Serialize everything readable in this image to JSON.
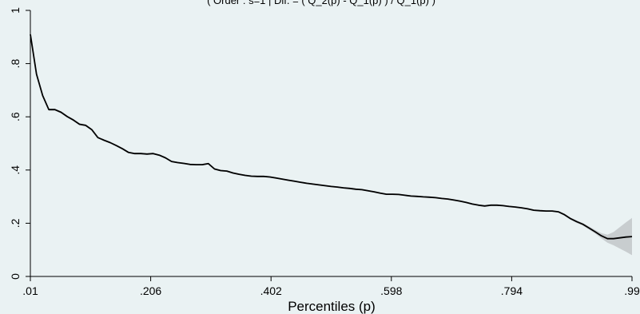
{
  "chart_data": {
    "type": "line",
    "title": "( Order : s=1 | Dif. = ( Q_2(p) - Q_1(p) ) / Q_1(p) )",
    "xlabel": "Percentiles (p)",
    "ylabel": "",
    "xlim": [
      0.01,
      0.99
    ],
    "ylim": [
      0,
      1
    ],
    "x_ticks": [
      0.01,
      0.206,
      0.402,
      0.598,
      0.794,
      0.99
    ],
    "x_tick_labels": [
      ".01",
      ".206",
      ".402",
      ".598",
      ".794",
      ".99"
    ],
    "y_ticks": [
      0,
      0.2,
      0.4,
      0.6,
      0.8,
      1
    ],
    "y_tick_labels": [
      "0",
      ".2",
      ".4",
      ".6",
      ".8",
      "1"
    ],
    "grid": false,
    "legend": "none",
    "line_color": "#000000",
    "band_color": "#c8cdcf",
    "series": [
      {
        "x": [
          0.01,
          0.02,
          0.03,
          0.04,
          0.05,
          0.06,
          0.07,
          0.08,
          0.09,
          0.1,
          0.11,
          0.12,
          0.13,
          0.14,
          0.15,
          0.16,
          0.17,
          0.18,
          0.19,
          0.2,
          0.21,
          0.22,
          0.23,
          0.24,
          0.25,
          0.26,
          0.27,
          0.28,
          0.29,
          0.3,
          0.31,
          0.32,
          0.33,
          0.34,
          0.35,
          0.36,
          0.37,
          0.38,
          0.39,
          0.4,
          0.41,
          0.42,
          0.43,
          0.44,
          0.45,
          0.46,
          0.47,
          0.48,
          0.49,
          0.5,
          0.51,
          0.52,
          0.53,
          0.54,
          0.55,
          0.56,
          0.57,
          0.58,
          0.59,
          0.6,
          0.61,
          0.62,
          0.63,
          0.64,
          0.65,
          0.66,
          0.67,
          0.68,
          0.69,
          0.7,
          0.71,
          0.72,
          0.73,
          0.74,
          0.75,
          0.76,
          0.77,
          0.78,
          0.79,
          0.8,
          0.81,
          0.82,
          0.83,
          0.84,
          0.85,
          0.86,
          0.87,
          0.88,
          0.89,
          0.9,
          0.91,
          0.92,
          0.93,
          0.94,
          0.95,
          0.96,
          0.97,
          0.98,
          0.99
        ],
        "y": [
          0.91,
          0.76,
          0.68,
          0.627,
          0.627,
          0.617,
          0.601,
          0.588,
          0.572,
          0.568,
          0.552,
          0.522,
          0.512,
          0.503,
          0.492,
          0.48,
          0.466,
          0.462,
          0.462,
          0.46,
          0.462,
          0.456,
          0.446,
          0.432,
          0.428,
          0.425,
          0.421,
          0.42,
          0.42,
          0.424,
          0.404,
          0.398,
          0.396,
          0.389,
          0.384,
          0.38,
          0.377,
          0.376,
          0.376,
          0.374,
          0.37,
          0.366,
          0.362,
          0.358,
          0.354,
          0.35,
          0.347,
          0.344,
          0.341,
          0.338,
          0.336,
          0.333,
          0.331,
          0.328,
          0.326,
          0.322,
          0.318,
          0.313,
          0.309,
          0.309,
          0.308,
          0.305,
          0.302,
          0.301,
          0.299,
          0.298,
          0.296,
          0.293,
          0.291,
          0.287,
          0.283,
          0.278,
          0.272,
          0.268,
          0.265,
          0.268,
          0.268,
          0.266,
          0.263,
          0.261,
          0.258,
          0.254,
          0.249,
          0.247,
          0.246,
          0.246,
          0.243,
          0.232,
          0.217,
          0.206,
          0.196,
          0.182,
          0.168,
          0.153,
          0.142,
          0.142,
          0.145,
          0.148,
          0.15
        ],
        "ci_halfwidth": [
          0.004,
          0.004,
          0.004,
          0.004,
          0.004,
          0.004,
          0.004,
          0.004,
          0.004,
          0.004,
          0.003,
          0.003,
          0.003,
          0.003,
          0.003,
          0.003,
          0.003,
          0.003,
          0.003,
          0.003,
          0.003,
          0.003,
          0.003,
          0.003,
          0.003,
          0.003,
          0.003,
          0.003,
          0.003,
          0.003,
          0.003,
          0.003,
          0.003,
          0.003,
          0.003,
          0.003,
          0.003,
          0.003,
          0.003,
          0.003,
          0.003,
          0.003,
          0.003,
          0.003,
          0.003,
          0.003,
          0.003,
          0.003,
          0.003,
          0.003,
          0.003,
          0.003,
          0.003,
          0.003,
          0.003,
          0.003,
          0.003,
          0.003,
          0.003,
          0.003,
          0.003,
          0.003,
          0.003,
          0.003,
          0.003,
          0.003,
          0.003,
          0.003,
          0.003,
          0.003,
          0.003,
          0.003,
          0.003,
          0.003,
          0.003,
          0.003,
          0.003,
          0.003,
          0.003,
          0.003,
          0.003,
          0.003,
          0.003,
          0.003,
          0.003,
          0.003,
          0.003,
          0.004,
          0.004,
          0.005,
          0.005,
          0.006,
          0.007,
          0.01,
          0.015,
          0.025,
          0.04,
          0.055,
          0.07
        ]
      }
    ]
  }
}
